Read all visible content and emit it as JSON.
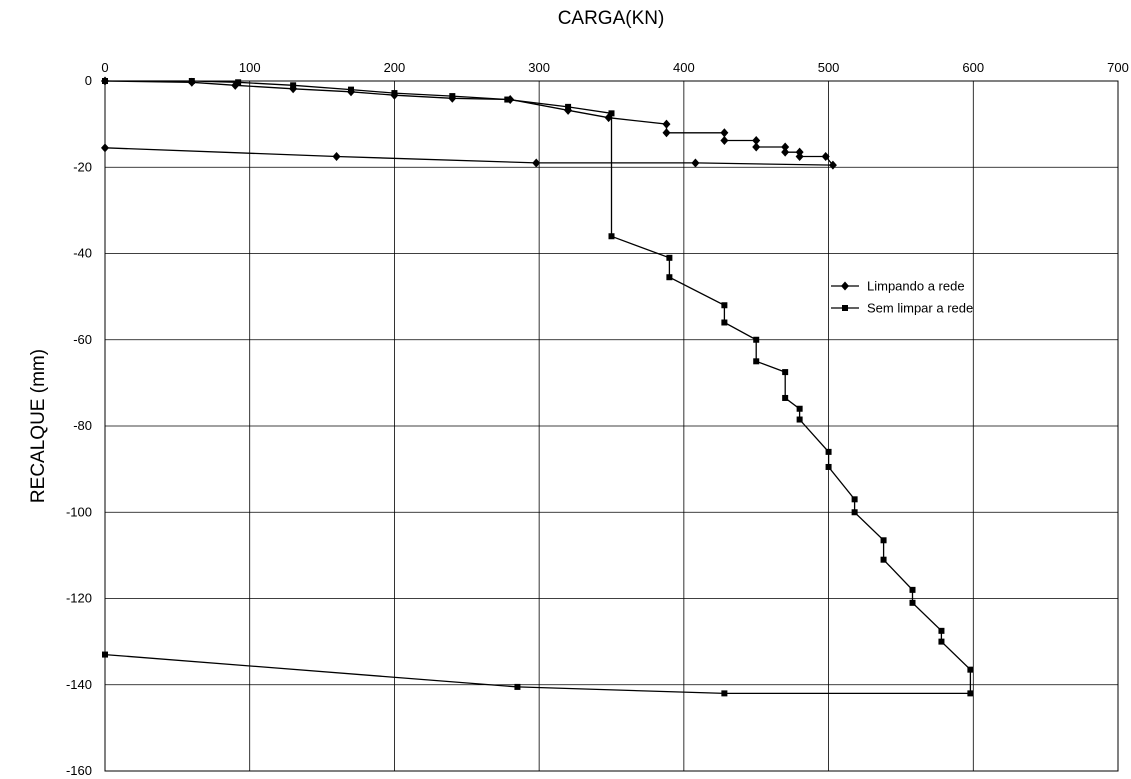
{
  "chart_data": {
    "type": "line",
    "title": "",
    "xlabel": "CARGA(KN)",
    "ylabel": "RECALQUE (mm)",
    "xlim": [
      0,
      700
    ],
    "ylim": [
      -160,
      0
    ],
    "xticks": [
      0,
      100,
      200,
      300,
      400,
      500,
      600,
      700
    ],
    "yticks": [
      0,
      -20,
      -40,
      -60,
      -80,
      -100,
      -120,
      -140,
      -160
    ],
    "x_axis_position": "top",
    "grid": true,
    "legend_position": "right",
    "series": [
      {
        "name": "Limpando a rede",
        "marker": "diamond",
        "color": "#000000",
        "points": [
          [
            0,
            0
          ],
          [
            60,
            -0.3
          ],
          [
            90,
            -1
          ],
          [
            130,
            -1.8
          ],
          [
            170,
            -2.5
          ],
          [
            200,
            -3.3
          ],
          [
            240,
            -4
          ],
          [
            280,
            -4.3
          ],
          [
            320,
            -6.8
          ],
          [
            348,
            -8.5
          ],
          [
            388,
            -10
          ],
          [
            388,
            -12
          ],
          [
            428,
            -12
          ],
          [
            428,
            -13.8
          ],
          [
            450,
            -13.8
          ],
          [
            450,
            -15.3
          ],
          [
            470,
            -15.3
          ],
          [
            470,
            -16.5
          ],
          [
            480,
            -16.5
          ],
          [
            480,
            -17.5
          ],
          [
            498,
            -17.5
          ],
          [
            503,
            -19.5
          ],
          [
            408,
            -19
          ],
          [
            298,
            -19
          ],
          [
            160,
            -17.5
          ],
          [
            0,
            -15.5
          ]
        ]
      },
      {
        "name": "Sem limpar a rede",
        "marker": "square",
        "color": "#000000",
        "points": [
          [
            0,
            0
          ],
          [
            60,
            0
          ],
          [
            92,
            -0.3
          ],
          [
            130,
            -1
          ],
          [
            170,
            -2
          ],
          [
            200,
            -2.8
          ],
          [
            240,
            -3.5
          ],
          [
            278,
            -4.3
          ],
          [
            320,
            -6
          ],
          [
            350,
            -7.5
          ],
          [
            350,
            -36
          ],
          [
            390,
            -41
          ],
          [
            390,
            -45.5
          ],
          [
            428,
            -52
          ],
          [
            428,
            -56
          ],
          [
            450,
            -60
          ],
          [
            450,
            -65
          ],
          [
            470,
            -67.5
          ],
          [
            470,
            -73.5
          ],
          [
            480,
            -76
          ],
          [
            480,
            -78.5
          ],
          [
            500,
            -86
          ],
          [
            500,
            -89.5
          ],
          [
            518,
            -97
          ],
          [
            518,
            -100
          ],
          [
            538,
            -106.5
          ],
          [
            538,
            -111
          ],
          [
            558,
            -118
          ],
          [
            558,
            -121
          ],
          [
            578,
            -127.5
          ],
          [
            578,
            -130
          ],
          [
            598,
            -136.5
          ],
          [
            598,
            -142
          ],
          [
            428,
            -142
          ],
          [
            285,
            -140.5
          ],
          [
            0,
            -133
          ]
        ]
      }
    ]
  }
}
